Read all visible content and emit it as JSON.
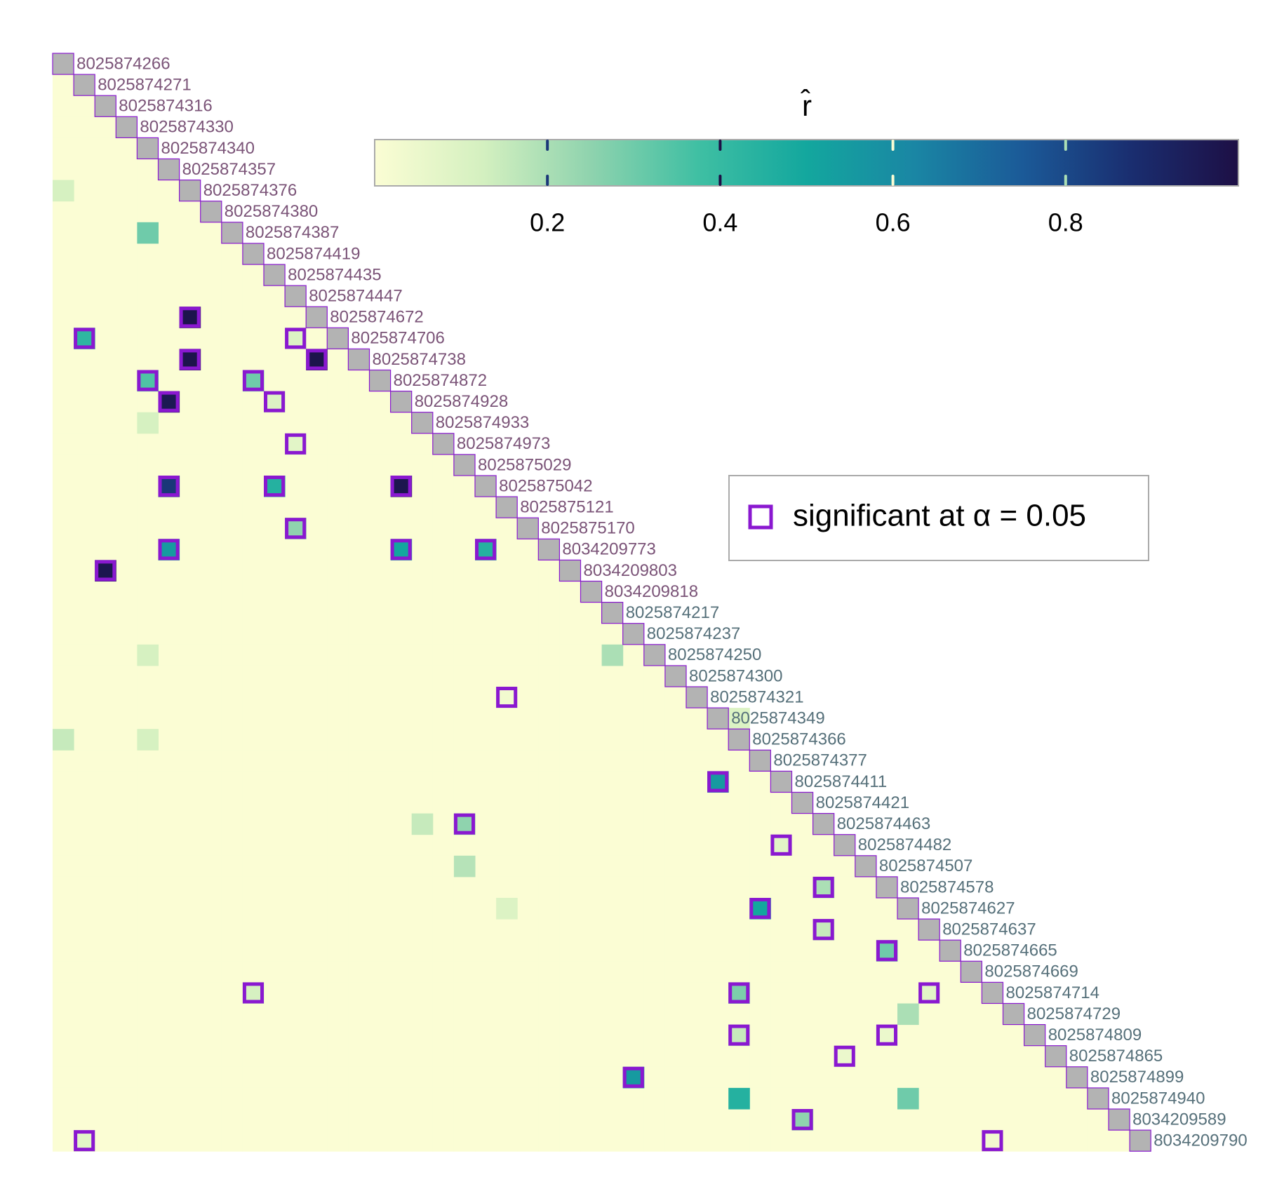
{
  "chart_data": {
    "type": "heatmap",
    "colorbar_title": "r̂",
    "clim": [
      0,
      1
    ],
    "colorbar_ticks": [
      0.2,
      0.4,
      0.6,
      0.8
    ],
    "colorscale": [
      "#fbfdd4",
      "#d4f0c0",
      "#8fd3ae",
      "#3fbfa3",
      "#13a79e",
      "#1a86a4",
      "#1b5a98",
      "#1a2e70",
      "#1d0f45"
    ],
    "diagonal_color": "#b3b3b3",
    "significant_color": "#8a18d0",
    "legend_label": "significant at  α = 0.05",
    "labels": [
      {
        "text": "8025874266",
        "color": "#7b5478"
      },
      {
        "text": "8025874271",
        "color": "#7b5478"
      },
      {
        "text": "8025874316",
        "color": "#7b5478"
      },
      {
        "text": "8025874330",
        "color": "#7b5478"
      },
      {
        "text": "8025874340",
        "color": "#7b5478"
      },
      {
        "text": "8025874357",
        "color": "#7b5478"
      },
      {
        "text": "8025874376",
        "color": "#7b5478"
      },
      {
        "text": "8025874380",
        "color": "#7b5478"
      },
      {
        "text": "8025874387",
        "color": "#7b5478"
      },
      {
        "text": "8025874419",
        "color": "#7b5478"
      },
      {
        "text": "8025874435",
        "color": "#7b5478"
      },
      {
        "text": "8025874447",
        "color": "#7b5478"
      },
      {
        "text": "8025874672",
        "color": "#7b5478"
      },
      {
        "text": "8025874706",
        "color": "#7b5478"
      },
      {
        "text": "8025874738",
        "color": "#7b5478"
      },
      {
        "text": "8025874872",
        "color": "#7b5478"
      },
      {
        "text": "8025874928",
        "color": "#7b5478"
      },
      {
        "text": "8025874933",
        "color": "#7b5478"
      },
      {
        "text": "8025874973",
        "color": "#7b5478"
      },
      {
        "text": "8025875029",
        "color": "#7b5478"
      },
      {
        "text": "8025875042",
        "color": "#7b5478"
      },
      {
        "text": "8025875121",
        "color": "#7b5478"
      },
      {
        "text": "8025875170",
        "color": "#7b5478"
      },
      {
        "text": "8034209773",
        "color": "#7b5478"
      },
      {
        "text": "8034209803",
        "color": "#7b5478"
      },
      {
        "text": "8034209818",
        "color": "#7b5478"
      },
      {
        "text": "8025874217",
        "color": "#56707a"
      },
      {
        "text": "8025874237",
        "color": "#56707a"
      },
      {
        "text": "8025874250",
        "color": "#56707a"
      },
      {
        "text": "8025874300",
        "color": "#56707a"
      },
      {
        "text": "8025874321",
        "color": "#56707a"
      },
      {
        "text": "8025874349",
        "color": "#56707a"
      },
      {
        "text": "8025874366",
        "color": "#56707a"
      },
      {
        "text": "8025874377",
        "color": "#56707a"
      },
      {
        "text": "8025874411",
        "color": "#56707a"
      },
      {
        "text": "8025874421",
        "color": "#56707a"
      },
      {
        "text": "8025874463",
        "color": "#56707a"
      },
      {
        "text": "8025874482",
        "color": "#56707a"
      },
      {
        "text": "8025874507",
        "color": "#56707a"
      },
      {
        "text": "8025874578",
        "color": "#56707a"
      },
      {
        "text": "8025874627",
        "color": "#56707a"
      },
      {
        "text": "8025874637",
        "color": "#56707a"
      },
      {
        "text": "8025874665",
        "color": "#56707a"
      },
      {
        "text": "8025874669",
        "color": "#56707a"
      },
      {
        "text": "8025874714",
        "color": "#56707a"
      },
      {
        "text": "8025874729",
        "color": "#56707a"
      },
      {
        "text": "8025874809",
        "color": "#56707a"
      },
      {
        "text": "8025874865",
        "color": "#56707a"
      },
      {
        "text": "8025874899",
        "color": "#56707a"
      },
      {
        "text": "8025874940",
        "color": "#56707a"
      },
      {
        "text": "8034209589",
        "color": "#56707a"
      },
      {
        "text": "8034209790",
        "color": "#56707a"
      }
    ],
    "cells": [
      {
        "row": "8025874672",
        "col": "8025874376",
        "value": 0.98,
        "significant": true
      },
      {
        "row": "8025874706",
        "col": "8025874271",
        "value": 0.42,
        "significant": true
      },
      {
        "row": "8025874706",
        "col": "8025874447",
        "value": 0.1,
        "significant": true
      },
      {
        "row": "8025874738",
        "col": "8025874376",
        "value": 0.98,
        "significant": true
      },
      {
        "row": "8025874738",
        "col": "8025874672",
        "value": 0.98,
        "significant": true
      },
      {
        "row": "8025874872",
        "col": "8025874340",
        "value": 0.35,
        "significant": true
      },
      {
        "row": "8025874872",
        "col": "8025874419",
        "value": 0.3,
        "significant": true
      },
      {
        "row": "8025874928",
        "col": "8025874357",
        "value": 0.96,
        "significant": true
      },
      {
        "row": "8025874928",
        "col": "8025874435",
        "value": 0.1,
        "significant": true
      },
      {
        "row": "8025874973",
        "col": "8025874447",
        "value": 0.08,
        "significant": true
      },
      {
        "row": "8025875042",
        "col": "8025874357",
        "value": 0.85,
        "significant": true
      },
      {
        "row": "8025875042",
        "col": "8025874435",
        "value": 0.45,
        "significant": true
      },
      {
        "row": "8025875042",
        "col": "8025874928",
        "value": 0.97,
        "significant": true
      },
      {
        "row": "8025875170",
        "col": "8025874447",
        "value": 0.25,
        "significant": true
      },
      {
        "row": "8034209773",
        "col": "8025874357",
        "value": 0.55,
        "significant": true
      },
      {
        "row": "8034209773",
        "col": "8025874928",
        "value": 0.5,
        "significant": true
      },
      {
        "row": "8034209773",
        "col": "8025875042",
        "value": 0.45,
        "significant": true
      },
      {
        "row": "8034209803",
        "col": "8025874316",
        "value": 0.97,
        "significant": true
      },
      {
        "row": "8025874321",
        "col": "8025875121",
        "value": 0.03,
        "significant": true
      },
      {
        "row": "8025874411",
        "col": "8025874349",
        "value": 0.55,
        "significant": true
      },
      {
        "row": "8025874463",
        "col": "8025875029",
        "value": 0.25,
        "significant": true
      },
      {
        "row": "8025874482",
        "col": "8025874411",
        "value": 0.08,
        "significant": true
      },
      {
        "row": "8025874578",
        "col": "8025874463",
        "value": 0.2,
        "significant": true
      },
      {
        "row": "8025874627",
        "col": "8025874377",
        "value": 0.5,
        "significant": true
      },
      {
        "row": "8025874637",
        "col": "8025874463",
        "value": 0.15,
        "significant": true
      },
      {
        "row": "8025874665",
        "col": "8025874578",
        "value": 0.3,
        "significant": true
      },
      {
        "row": "8025874714",
        "col": "8025874419",
        "value": 0.12,
        "significant": true
      },
      {
        "row": "8025874714",
        "col": "8025874366",
        "value": 0.28,
        "significant": true
      },
      {
        "row": "8025874714",
        "col": "8025874637",
        "value": 0.08,
        "significant": true
      },
      {
        "row": "8025874809",
        "col": "8025874366",
        "value": 0.15,
        "significant": true
      },
      {
        "row": "8025874809",
        "col": "8025874578",
        "value": 0.05,
        "significant": true
      },
      {
        "row": "8025874865",
        "col": "8025874482",
        "value": 0.05,
        "significant": true
      },
      {
        "row": "8025874899",
        "col": "8025874237",
        "value": 0.55,
        "significant": true
      },
      {
        "row": "8034209589",
        "col": "8025874421",
        "value": 0.25,
        "significant": true
      },
      {
        "row": "8034209790",
        "col": "8025874271",
        "value": 0.08,
        "significant": true
      },
      {
        "row": "8034209790",
        "col": "8025874714",
        "value": 0.03,
        "significant": true
      },
      {
        "row": "8025874387",
        "col": "8025874340",
        "value": 0.3,
        "significant": false
      },
      {
        "row": "8025874940",
        "col": "8025874366",
        "value": 0.45,
        "significant": false
      },
      {
        "row": "8025874940",
        "col": "8025874627",
        "value": 0.3,
        "significant": false
      },
      {
        "row": "8025874376",
        "col": "8025874266",
        "value": 0.12,
        "significant": false
      },
      {
        "row": "8025874366",
        "col": "8025874266",
        "value": 0.15,
        "significant": false
      },
      {
        "row": "8025874250",
        "col": "8025874217",
        "value": 0.2,
        "significant": false
      },
      {
        "row": "8025874507",
        "col": "8025875029",
        "value": 0.18,
        "significant": false
      },
      {
        "row": "8025874463",
        "col": "8025874933",
        "value": 0.15,
        "significant": false
      },
      {
        "row": "8025874729",
        "col": "8025874627",
        "value": 0.2,
        "significant": false
      },
      {
        "row": "8025874933",
        "col": "8025874340",
        "value": 0.12,
        "significant": false
      },
      {
        "row": "8025874250",
        "col": "8025874340",
        "value": 0.12,
        "significant": false
      },
      {
        "row": "8025874366",
        "col": "8025874340",
        "value": 0.12,
        "significant": false
      },
      {
        "row": "8025874627",
        "col": "8025875121",
        "value": 0.1,
        "significant": false
      },
      {
        "row": "8025874349",
        "col": "8025874366",
        "value": 0.1,
        "significant": false
      }
    ]
  }
}
